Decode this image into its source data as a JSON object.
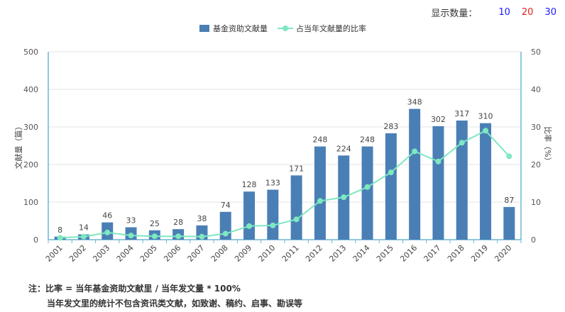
{
  "controls": {
    "label": "显示数量：",
    "options": [
      {
        "label": "10",
        "color": "#1a1aff"
      },
      {
        "label": "20",
        "color": "#e0201d"
      },
      {
        "label": "30",
        "color": "#1a1aff"
      }
    ]
  },
  "notes": {
    "line1": "注：比率 = 当年基金资助文献里 / 当年发文量 * 100%",
    "line2": "当年发文里的统计不包含资讯类文献，如致谢、稿约、启事、勘误等"
  },
  "chart_data": {
    "type": "bar",
    "categories": [
      "2001",
      "2002",
      "2003",
      "2004",
      "2005",
      "2006",
      "2007",
      "2008",
      "2009",
      "2010",
      "2011",
      "2012",
      "2013",
      "2014",
      "2015",
      "2016",
      "2017",
      "2018",
      "2019",
      "2020"
    ],
    "series": [
      {
        "name": "基金资助文献量",
        "type": "bar",
        "axis": "left",
        "color": "#4a7fb5",
        "values": [
          8,
          14,
          46,
          33,
          25,
          28,
          38,
          74,
          128,
          133,
          171,
          248,
          224,
          248,
          283,
          348,
          302,
          317,
          310,
          87
        ]
      },
      {
        "name": "占当年文献量的比率",
        "type": "line",
        "axis": "right",
        "color": "#7ee8c0",
        "values": [
          0.5,
          0.8,
          1.9,
          1.1,
          0.9,
          0.9,
          0.8,
          1.6,
          3.6,
          3.8,
          5.4,
          10.3,
          11.3,
          14.0,
          17.9,
          23.5,
          20.8,
          25.8,
          29.0,
          22.2
        ]
      }
    ],
    "ylabel": "文献量（篇）",
    "y2label": "比率（%）",
    "ylim": [
      0,
      500
    ],
    "y2lim": [
      0,
      50
    ],
    "yticks": [
      0,
      100,
      200,
      300,
      400,
      500
    ],
    "y2ticks": [
      0,
      10,
      20,
      30,
      40,
      50
    ],
    "grid": true,
    "legend": "top-center"
  }
}
